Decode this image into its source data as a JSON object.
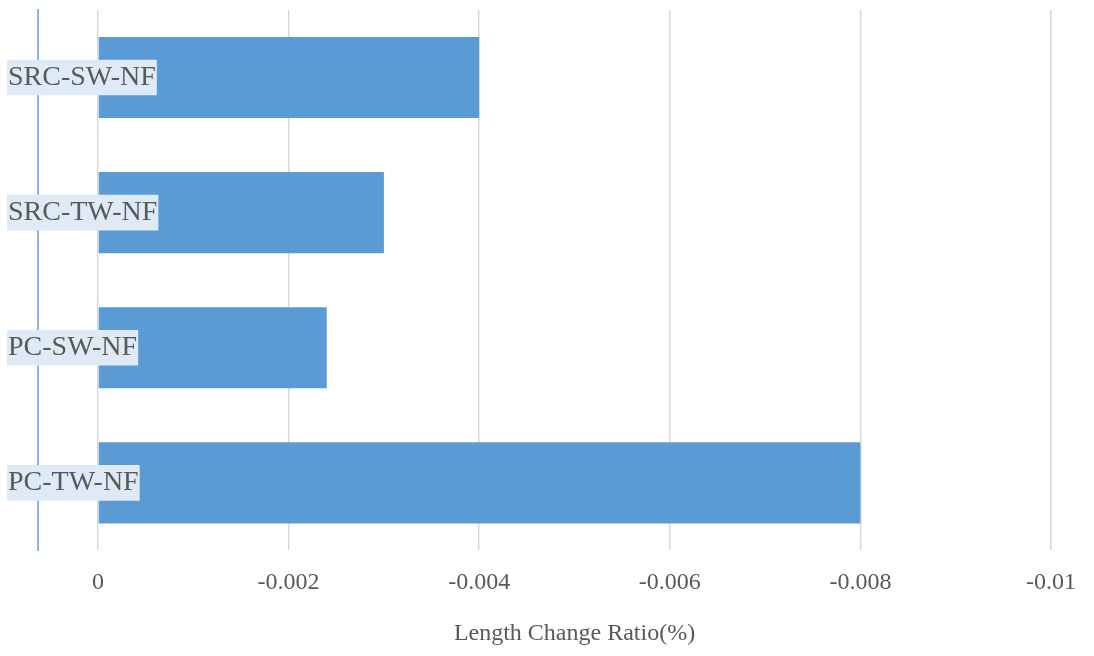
{
  "chart_data": {
    "type": "bar",
    "orientation": "horizontal",
    "xlabel": "Length Change Ratio(%)",
    "categories": [
      "SRC-SW-NF",
      "SRC-TW-NF",
      "PC-SW-NF",
      "PC-TW-NF"
    ],
    "values": [
      -0.004,
      -0.003,
      -0.0024,
      -0.008
    ],
    "color": "#5b9bd5",
    "xlim": [
      0,
      -0.01
    ],
    "xticks": [
      0,
      -0.002,
      -0.004,
      -0.006,
      -0.008,
      -0.01
    ],
    "grid": "x",
    "legend": false
  }
}
